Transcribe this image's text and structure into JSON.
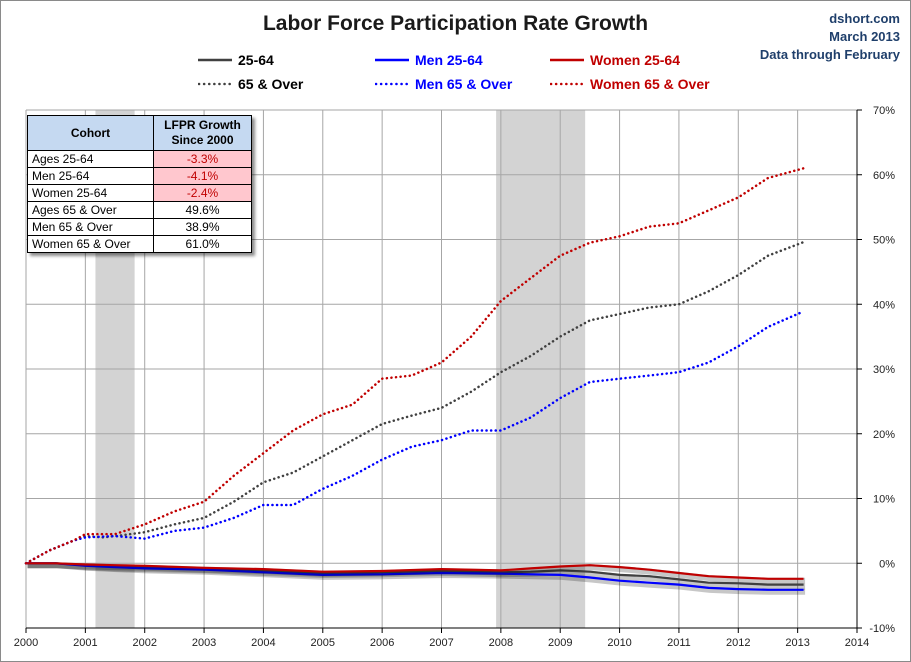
{
  "title": "Labor Force Participation Rate Growth",
  "source": {
    "site": "dshort.com",
    "date": "March 2013",
    "note": "Data through February"
  },
  "legend": [
    {
      "label": "25-64",
      "color": "#404040",
      "style": "solid"
    },
    {
      "label": "Men 25-64",
      "color": "#0000ff",
      "style": "solid"
    },
    {
      "label": "Women 25-64",
      "color": "#c00000",
      "style": "solid"
    },
    {
      "label": "65 & Over",
      "color": "#404040",
      "style": "dotted"
    },
    {
      "label": "Men 65 & Over",
      "color": "#0000ff",
      "style": "dotted"
    },
    {
      "label": "Women 65 & Over",
      "color": "#c00000",
      "style": "dotted"
    }
  ],
  "table": {
    "headers": [
      "Cohort",
      "LFPR Growth Since 2000"
    ],
    "rows": [
      {
        "cohort": "Ages 25-64",
        "value": "-3.3%",
        "negative": true
      },
      {
        "cohort": "Men 25-64",
        "value": "-4.1%",
        "negative": true
      },
      {
        "cohort": "Women 25-64",
        "value": "-2.4%",
        "negative": true
      },
      {
        "cohort": "Ages 65 & Over",
        "value": "49.6%",
        "negative": false
      },
      {
        "cohort": "Men 65 & Over",
        "value": "38.9%",
        "negative": false
      },
      {
        "cohort": "Women 65 & Over",
        "value": "61.0%",
        "negative": false
      }
    ]
  },
  "chart_data": {
    "type": "line",
    "title": "Labor Force Participation Rate Growth",
    "x_ticks": [
      "2000",
      "2001",
      "2002",
      "2003",
      "2004",
      "2005",
      "2006",
      "2007",
      "2008",
      "2009",
      "2010",
      "2011",
      "2012",
      "2013",
      "2014"
    ],
    "xlim": [
      2000,
      2014
    ],
    "ylim": [
      -10,
      70
    ],
    "y_ticks": [
      "-10%",
      "0%",
      "10%",
      "20%",
      "30%",
      "40%",
      "50%",
      "60%",
      "70%"
    ],
    "y_axis_position": "right",
    "grid": true,
    "recessions": [
      [
        2001.17,
        2001.83
      ],
      [
        2007.92,
        2009.42
      ]
    ],
    "series": [
      {
        "name": "25-64",
        "color": "#404040",
        "style": "solid",
        "points": [
          [
            2000,
            0
          ],
          [
            2000.5,
            0
          ],
          [
            2001,
            -0.3
          ],
          [
            2001.5,
            -0.5
          ],
          [
            2002,
            -0.6
          ],
          [
            2003,
            -0.8
          ],
          [
            2004,
            -1.2
          ],
          [
            2005,
            -1.5
          ],
          [
            2006,
            -1.4
          ],
          [
            2007,
            -1.2
          ],
          [
            2008,
            -1.4
          ],
          [
            2008.5,
            -1.3
          ],
          [
            2009,
            -1.1
          ],
          [
            2009.5,
            -1.3
          ],
          [
            2010,
            -1.8
          ],
          [
            2010.5,
            -2.0
          ],
          [
            2011,
            -2.5
          ],
          [
            2011.5,
            -3.0
          ],
          [
            2012,
            -3.1
          ],
          [
            2012.5,
            -3.3
          ],
          [
            2013.1,
            -3.3
          ]
        ]
      },
      {
        "name": "Men 25-64",
        "color": "#0000ff",
        "style": "solid",
        "points": [
          [
            2000,
            0
          ],
          [
            2000.5,
            0
          ],
          [
            2001,
            -0.4
          ],
          [
            2001.5,
            -0.6
          ],
          [
            2002,
            -0.8
          ],
          [
            2003,
            -1.0
          ],
          [
            2004,
            -1.4
          ],
          [
            2005,
            -1.8
          ],
          [
            2006,
            -1.7
          ],
          [
            2007,
            -1.5
          ],
          [
            2008,
            -1.6
          ],
          [
            2008.5,
            -1.7
          ],
          [
            2009,
            -1.8
          ],
          [
            2009.5,
            -2.2
          ],
          [
            2010,
            -2.7
          ],
          [
            2010.5,
            -3.0
          ],
          [
            2011,
            -3.3
          ],
          [
            2011.5,
            -3.8
          ],
          [
            2012,
            -4.0
          ],
          [
            2012.5,
            -4.1
          ],
          [
            2013.1,
            -4.1
          ]
        ]
      },
      {
        "name": "Women 25-64",
        "color": "#c00000",
        "style": "solid",
        "points": [
          [
            2000,
            0
          ],
          [
            2000.5,
            0
          ],
          [
            2001,
            -0.2
          ],
          [
            2001.5,
            -0.3
          ],
          [
            2002,
            -0.4
          ],
          [
            2003,
            -0.7
          ],
          [
            2004,
            -0.9
          ],
          [
            2005,
            -1.3
          ],
          [
            2006,
            -1.2
          ],
          [
            2007,
            -0.9
          ],
          [
            2008,
            -1.1
          ],
          [
            2008.5,
            -0.8
          ],
          [
            2009,
            -0.5
          ],
          [
            2009.5,
            -0.3
          ],
          [
            2010,
            -0.6
          ],
          [
            2010.5,
            -1.0
          ],
          [
            2011,
            -1.5
          ],
          [
            2011.5,
            -2.0
          ],
          [
            2012,
            -2.2
          ],
          [
            2012.5,
            -2.4
          ],
          [
            2013.1,
            -2.4
          ]
        ]
      },
      {
        "name": "65 & Over",
        "color": "#404040",
        "style": "dotted",
        "points": [
          [
            2000,
            0
          ],
          [
            2000.4,
            2.0
          ],
          [
            2000.8,
            3.5
          ],
          [
            2001,
            4.2
          ],
          [
            2001.3,
            4.0
          ],
          [
            2001.6,
            4.3
          ],
          [
            2002,
            4.8
          ],
          [
            2002.5,
            6.0
          ],
          [
            2003,
            7.0
          ],
          [
            2003.5,
            9.5
          ],
          [
            2004,
            12.5
          ],
          [
            2004.5,
            14.0
          ],
          [
            2005,
            16.5
          ],
          [
            2005.5,
            19.0
          ],
          [
            2006,
            21.5
          ],
          [
            2006.5,
            22.8
          ],
          [
            2007,
            24.0
          ],
          [
            2007.5,
            26.5
          ],
          [
            2008,
            29.5
          ],
          [
            2008.5,
            32.0
          ],
          [
            2009,
            35.0
          ],
          [
            2009.5,
            37.5
          ],
          [
            2010,
            38.5
          ],
          [
            2010.5,
            39.5
          ],
          [
            2011,
            40.0
          ],
          [
            2011.5,
            42.0
          ],
          [
            2012,
            44.5
          ],
          [
            2012.5,
            47.5
          ],
          [
            2013.1,
            49.6
          ]
        ]
      },
      {
        "name": "Men 65 & Over",
        "color": "#0000ff",
        "style": "dotted",
        "points": [
          [
            2000,
            0
          ],
          [
            2000.4,
            2.0
          ],
          [
            2000.8,
            3.5
          ],
          [
            2001,
            4.0
          ],
          [
            2001.5,
            4.2
          ],
          [
            2002,
            3.8
          ],
          [
            2002.5,
            5.0
          ],
          [
            2003,
            5.5
          ],
          [
            2003.5,
            7.0
          ],
          [
            2004,
            9.0
          ],
          [
            2004.5,
            9.0
          ],
          [
            2005,
            11.5
          ],
          [
            2005.5,
            13.5
          ],
          [
            2006,
            16.0
          ],
          [
            2006.5,
            18.0
          ],
          [
            2007,
            19.0
          ],
          [
            2007.5,
            20.5
          ],
          [
            2008,
            20.5
          ],
          [
            2008.5,
            22.5
          ],
          [
            2009,
            25.5
          ],
          [
            2009.5,
            28.0
          ],
          [
            2010,
            28.5
          ],
          [
            2010.5,
            29.0
          ],
          [
            2011,
            29.5
          ],
          [
            2011.5,
            31.0
          ],
          [
            2012,
            33.5
          ],
          [
            2012.5,
            36.5
          ],
          [
            2013.1,
            38.9
          ]
        ]
      },
      {
        "name": "Women 65 & Over",
        "color": "#c00000",
        "style": "dotted",
        "points": [
          [
            2000,
            0
          ],
          [
            2000.4,
            2.0
          ],
          [
            2000.8,
            3.5
          ],
          [
            2001,
            4.5
          ],
          [
            2001.5,
            4.5
          ],
          [
            2002,
            6.0
          ],
          [
            2002.5,
            8.0
          ],
          [
            2003,
            9.5
          ],
          [
            2003.5,
            13.5
          ],
          [
            2004,
            17.0
          ],
          [
            2004.5,
            20.5
          ],
          [
            2005,
            23.0
          ],
          [
            2005.5,
            24.5
          ],
          [
            2006,
            28.5
          ],
          [
            2006.5,
            29.0
          ],
          [
            2007,
            31.0
          ],
          [
            2007.5,
            35.0
          ],
          [
            2008,
            40.5
          ],
          [
            2008.5,
            44.0
          ],
          [
            2009,
            47.5
          ],
          [
            2009.5,
            49.5
          ],
          [
            2010,
            50.5
          ],
          [
            2010.5,
            52.0
          ],
          [
            2011,
            52.5
          ],
          [
            2011.5,
            54.5
          ],
          [
            2012,
            56.5
          ],
          [
            2012.5,
            59.5
          ],
          [
            2013.1,
            61.0
          ]
        ]
      }
    ]
  }
}
